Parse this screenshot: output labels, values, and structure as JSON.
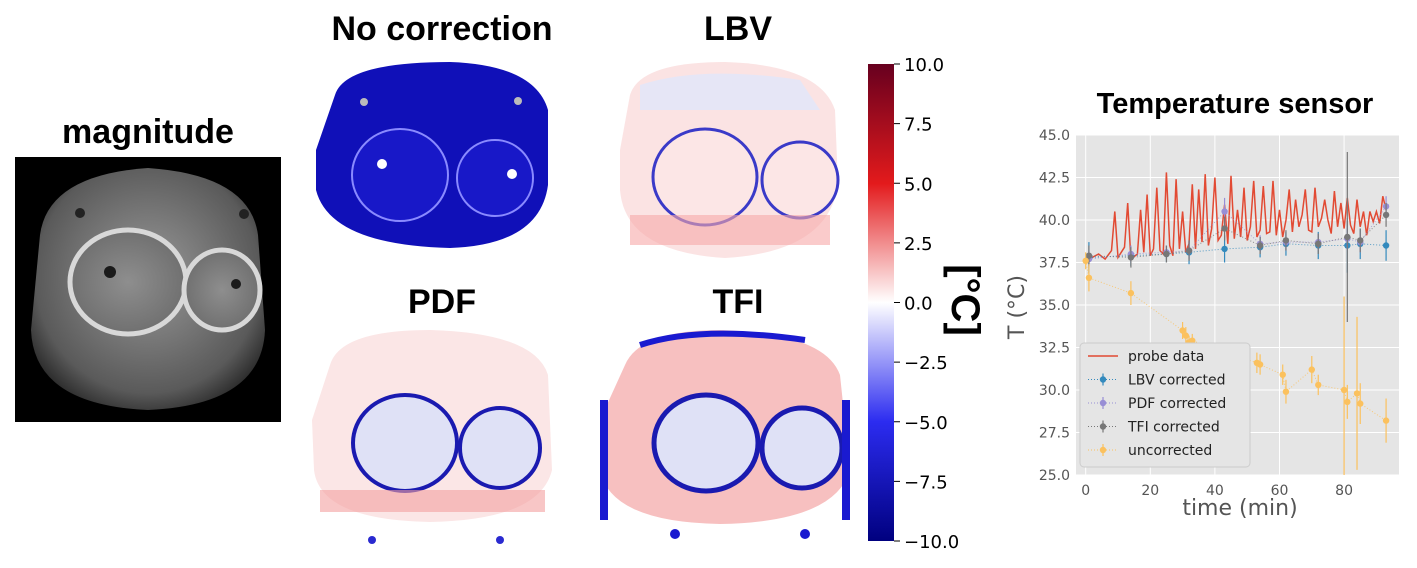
{
  "panels": {
    "magnitude": "magnitude",
    "no_correction": "No correction",
    "lbv": "LBV",
    "pdf": "PDF",
    "tfi": "TFI"
  },
  "colorbar": {
    "label": "[°C]",
    "ticks": [
      "10.0",
      "7.5",
      "5.0",
      "2.5",
      "0.0",
      "−2.5",
      "−5.0",
      "−7.5",
      "−10.0"
    ],
    "colors": {
      "max": "#67001f",
      "mid": "#ffffff",
      "min": "#00007f"
    }
  },
  "chart_data": {
    "type": "line",
    "title": "Temperature sensor",
    "xlabel": "time (min)",
    "ylabel": "T (°C)",
    "xlim": [
      -3,
      97
    ],
    "ylim": [
      25.0,
      45.0
    ],
    "xticks": [
      0,
      20,
      40,
      60,
      80
    ],
    "yticks": [
      25.0,
      27.5,
      30.0,
      32.5,
      35.0,
      37.5,
      40.0,
      42.5,
      45.0
    ],
    "ytick_labels": [
      "25.0",
      "27.5",
      "30.0",
      "32.5",
      "35.0",
      "37.5",
      "40.0",
      "42.5",
      "45.0"
    ],
    "xtick_labels": [
      "0",
      "20",
      "40",
      "60",
      "80"
    ],
    "legend": [
      "probe data",
      "LBV corrected",
      "PDF corrected",
      "TFI corrected",
      "uncorrected"
    ],
    "legend_position": "lower-left",
    "series": [
      {
        "name": "probe data",
        "color": "#e24a33",
        "style": "line",
        "x": [
          0,
          2,
          4,
          6,
          8,
          9,
          10,
          12,
          13,
          14,
          16,
          17,
          18,
          19,
          20,
          21,
          22,
          23,
          24,
          25,
          26,
          27,
          28,
          29,
          30,
          31,
          32,
          33,
          34,
          35,
          36,
          37,
          38,
          39,
          40,
          41,
          42,
          43,
          44,
          45,
          46,
          47,
          48,
          49,
          50,
          51,
          52,
          53,
          54,
          55,
          56,
          57,
          58,
          59,
          60,
          61,
          62,
          63,
          64,
          65,
          66,
          67,
          68,
          69,
          70,
          71,
          72,
          73,
          74,
          75,
          76,
          77,
          78,
          79,
          80,
          81,
          82,
          83,
          84,
          85,
          86,
          87,
          88,
          89,
          90,
          91,
          92,
          93
        ],
        "y": [
          37.6,
          37.8,
          38.0,
          37.7,
          38.2,
          40.5,
          37.8,
          38.4,
          41.0,
          37.7,
          38.0,
          40.6,
          38.1,
          41.5,
          37.9,
          38.3,
          41.9,
          38.2,
          38.0,
          42.8,
          38.5,
          37.9,
          42.4,
          38.3,
          40.5,
          38.1,
          38.6,
          42.1,
          38.3,
          41.8,
          38.7,
          42.7,
          38.5,
          39.5,
          42.5,
          38.8,
          39.1,
          40.9,
          38.6,
          42.6,
          38.9,
          40.6,
          39.0,
          41.9,
          38.8,
          39.6,
          42.3,
          39.0,
          39.4,
          42.0,
          39.2,
          39.3,
          42.3,
          39.1,
          40.6,
          39.0,
          40.0,
          41.8,
          39.3,
          41.2,
          39.6,
          40.3,
          41.8,
          39.4,
          39.3,
          41.9,
          39.6,
          40.1,
          41.2,
          40.0,
          39.2,
          41.7,
          39.6,
          41.0,
          39.5,
          41.3,
          39.7,
          39.2,
          41.2,
          39.6,
          40.5,
          39.1,
          40.5,
          39.9,
          40.5,
          39.8,
          41.4,
          40.6
        ]
      },
      {
        "name": "LBV corrected",
        "color": "#348abd",
        "style": "errorbar",
        "x": [
          1,
          14,
          25,
          32,
          43,
          54,
          62,
          72,
          81,
          85,
          93
        ],
        "y": [
          37.8,
          37.9,
          38.0,
          38.1,
          38.3,
          38.4,
          38.6,
          38.5,
          38.5,
          38.6,
          38.5
        ],
        "err": [
          0.9,
          0.6,
          0.5,
          0.7,
          0.8,
          0.6,
          0.7,
          0.8,
          1.6,
          0.9,
          0.9
        ]
      },
      {
        "name": "PDF corrected",
        "color": "#988ed5",
        "style": "errorbar",
        "x": [
          1,
          14,
          25,
          32,
          43,
          54,
          62,
          72,
          81,
          85,
          93
        ],
        "y": [
          37.7,
          38.0,
          38.1,
          38.2,
          40.5,
          38.6,
          38.7,
          38.7,
          38.9,
          38.7,
          40.8
        ],
        "err": [
          0.5,
          0.5,
          0.4,
          0.5,
          0.8,
          0.5,
          0.5,
          0.5,
          0.7,
          0.6,
          0.6
        ]
      },
      {
        "name": "TFI corrected",
        "color": "#777777",
        "style": "errorbar",
        "x": [
          1,
          14,
          25,
          32,
          43,
          54,
          62,
          72,
          81,
          85,
          93
        ],
        "y": [
          37.9,
          37.8,
          38.0,
          38.2,
          39.5,
          38.5,
          38.8,
          38.6,
          39.0,
          38.8,
          40.3
        ],
        "err": [
          0.6,
          0.6,
          0.5,
          0.6,
          0.7,
          0.5,
          0.6,
          0.6,
          5.0,
          0.7,
          0.7
        ]
      },
      {
        "name": "uncorrected",
        "color": "#fbc15e",
        "style": "errorbar",
        "x": [
          0,
          1,
          14,
          30,
          31,
          32,
          33,
          53,
          54,
          61,
          62,
          70,
          72,
          80,
          81,
          84,
          85,
          93
        ],
        "y": [
          37.6,
          36.6,
          35.7,
          33.5,
          33.2,
          32.8,
          32.9,
          31.6,
          31.5,
          30.9,
          29.9,
          31.2,
          30.3,
          30.0,
          29.3,
          29.8,
          29.2,
          28.2
        ],
        "err": [
          0.5,
          0.8,
          0.7,
          0.5,
          0.5,
          0.4,
          0.4,
          0.6,
          0.6,
          0.6,
          0.7,
          0.8,
          0.6,
          5.5,
          1.0,
          4.5,
          1.2,
          1.3
        ]
      }
    ]
  }
}
